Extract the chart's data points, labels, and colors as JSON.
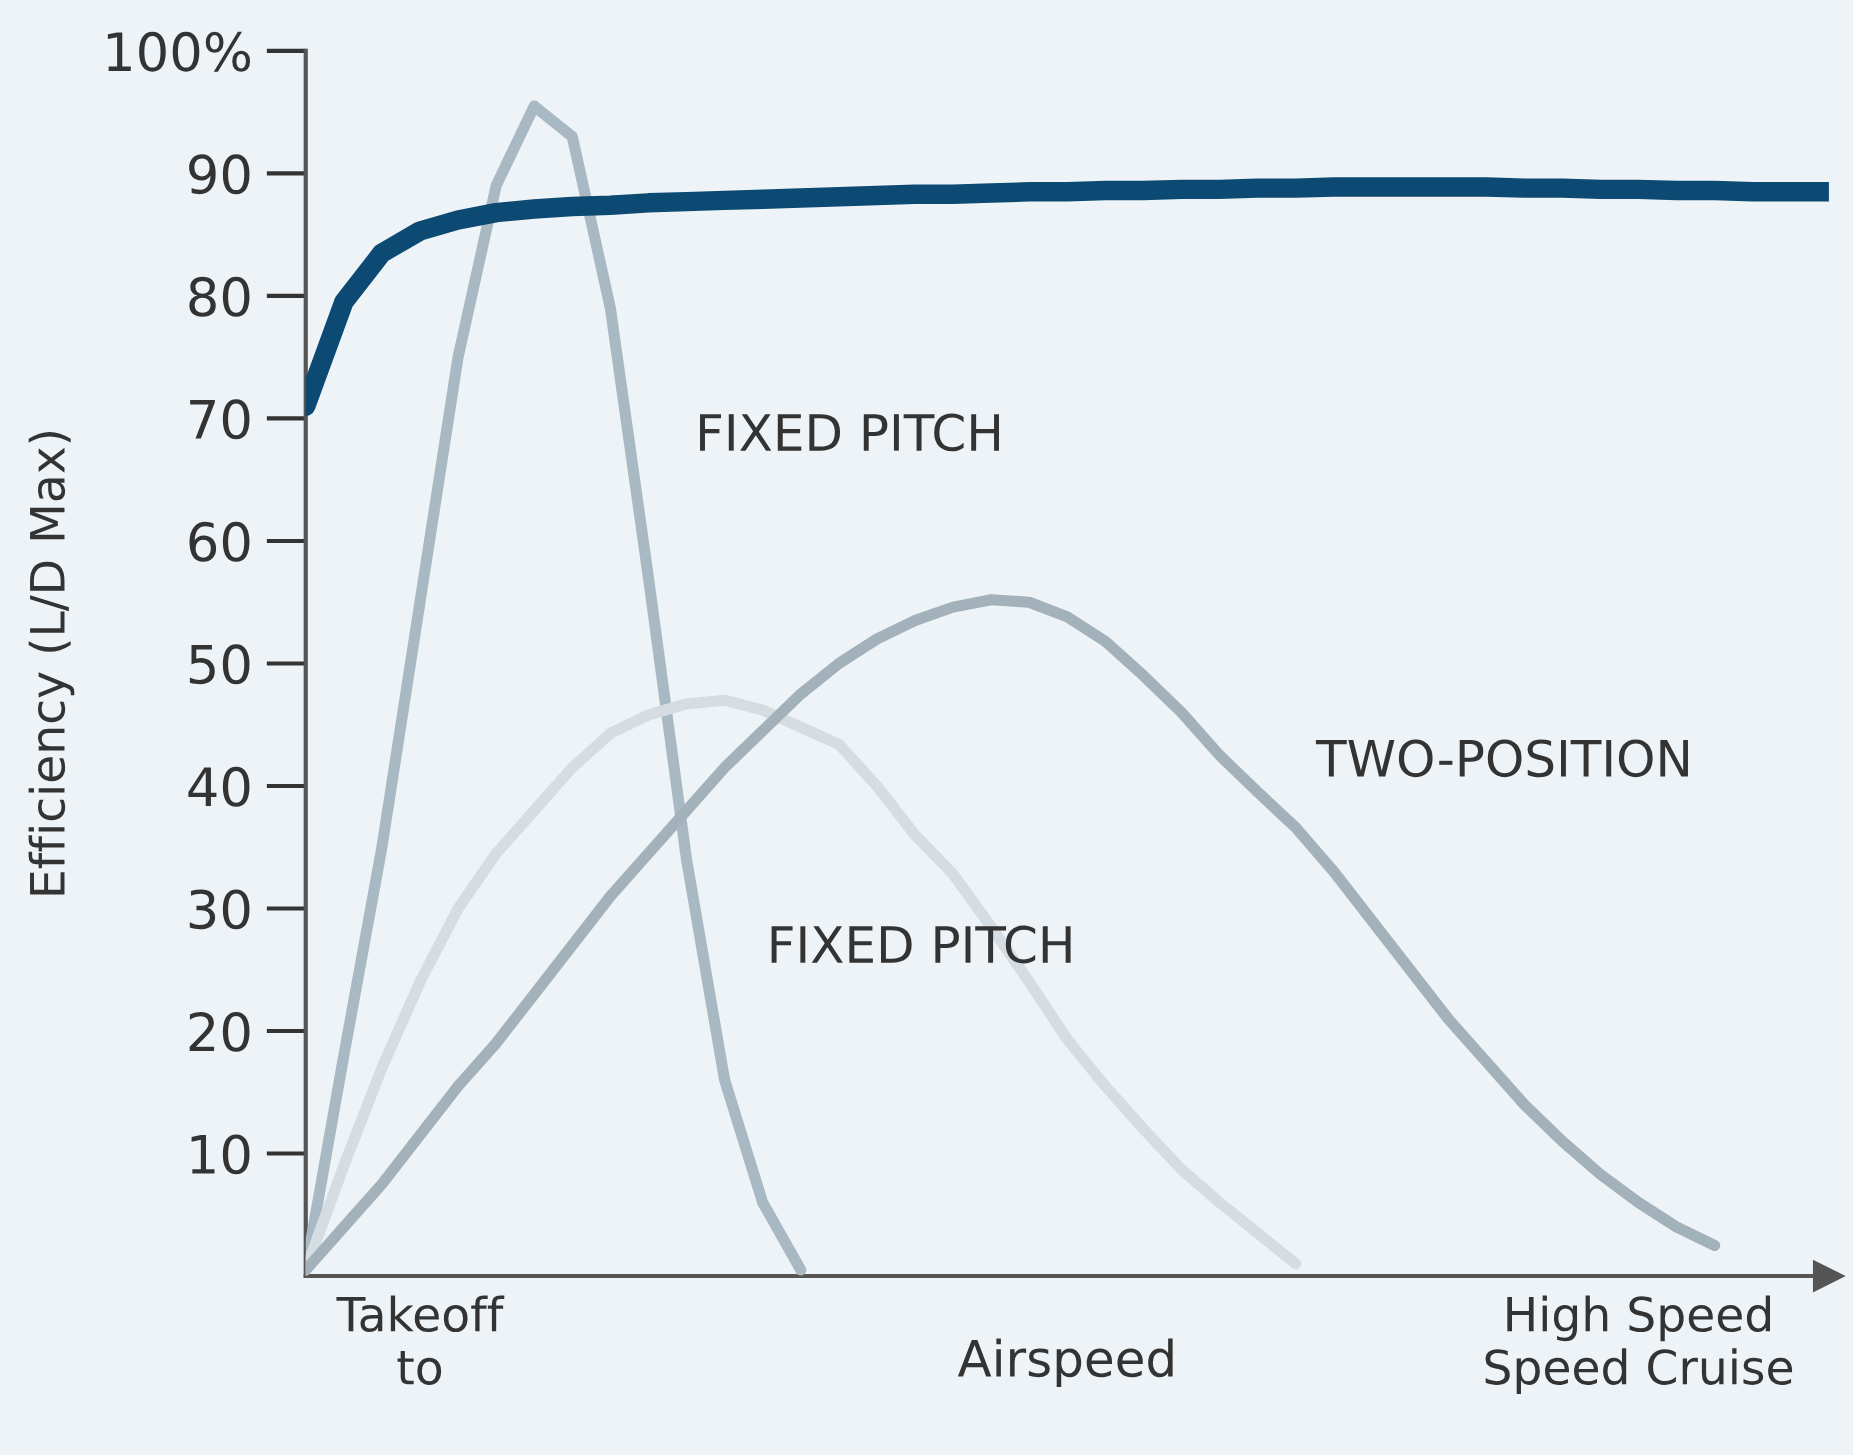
{
  "chart_data": {
    "type": "line",
    "ylabel": "Efficiency (L/D Max)",
    "xlabel": "Airspeed",
    "categories": [
      null,
      null,
      null,
      "Takeoff\nto",
      null,
      null,
      null,
      null,
      null,
      null,
      null,
      null,
      null,
      null,
      null,
      null,
      null,
      null,
      null,
      null,
      null,
      null,
      null,
      null,
      null,
      null,
      null,
      null,
      null,
      null,
      null,
      null,
      null,
      null,
      null,
      "High Speed\nSpeed Cruise",
      null,
      null,
      null,
      null,
      null
    ],
    "ylim": [
      0,
      100
    ],
    "yticks": [
      10,
      20,
      30,
      40,
      50,
      60,
      70,
      80,
      90,
      {
        "value": 100,
        "label": "100%"
      }
    ],
    "grid": false,
    "marker": "none",
    "line_style": "solid",
    "series": [
      {
        "color": "#0d4a73",
        "values": [
          71,
          79.5,
          83.5,
          85.3,
          86.2,
          86.8,
          87.1,
          87.3,
          87.4,
          87.6,
          87.7,
          87.8,
          87.9,
          88.0,
          88.1,
          88.2,
          88.3,
          88.3,
          88.4,
          88.5,
          88.5,
          88.6,
          88.6,
          88.7,
          88.7,
          88.8,
          88.8,
          88.9,
          88.9,
          88.9,
          88.9,
          88.9,
          88.8,
          88.8,
          88.7,
          88.7,
          88.6,
          88.6,
          88.5,
          88.5,
          88.5
        ]
      },
      {
        "color": "#a9b9c4",
        "values": [
          0.5,
          18,
          35,
          55,
          75,
          89,
          95.5,
          93,
          79,
          57,
          34,
          16,
          6,
          0.5,
          null,
          null,
          null,
          null,
          null,
          null,
          null,
          null,
          null,
          null,
          null,
          null,
          null,
          null,
          null,
          null,
          null,
          null,
          null,
          null,
          null,
          null,
          null,
          null,
          null,
          null,
          null
        ]
      },
      {
        "color": "#d6dde2",
        "values": [
          0.5,
          9,
          17,
          24,
          30,
          34.5,
          38,
          41.5,
          44.3,
          45.8,
          46.7,
          47,
          46.2,
          44.8,
          43.4,
          40,
          36,
          32.8,
          28.5,
          24,
          19.3,
          15.5,
          12,
          8.7,
          6,
          3.5,
          1,
          null,
          null,
          null,
          null,
          null,
          null,
          null,
          null,
          null,
          null,
          null,
          null,
          null,
          null
        ]
      },
      {
        "color": "#a3b1bb",
        "values": [
          0.5,
          4,
          7.5,
          11.5,
          15.5,
          19,
          23,
          27,
          31,
          34.5,
          38,
          41.5,
          44.5,
          47.5,
          50,
          52,
          53.5,
          54.6,
          55.2,
          55,
          53.8,
          51.8,
          49,
          46,
          42.5,
          39.5,
          36.6,
          33,
          29,
          25,
          21,
          17.5,
          14,
          11,
          8.3,
          6,
          4,
          2.5,
          null,
          null,
          null
        ]
      }
    ],
    "annotations": [
      "FIXED PITCH",
      "FIXED PITCH",
      "TWO-POSITION"
    ]
  }
}
